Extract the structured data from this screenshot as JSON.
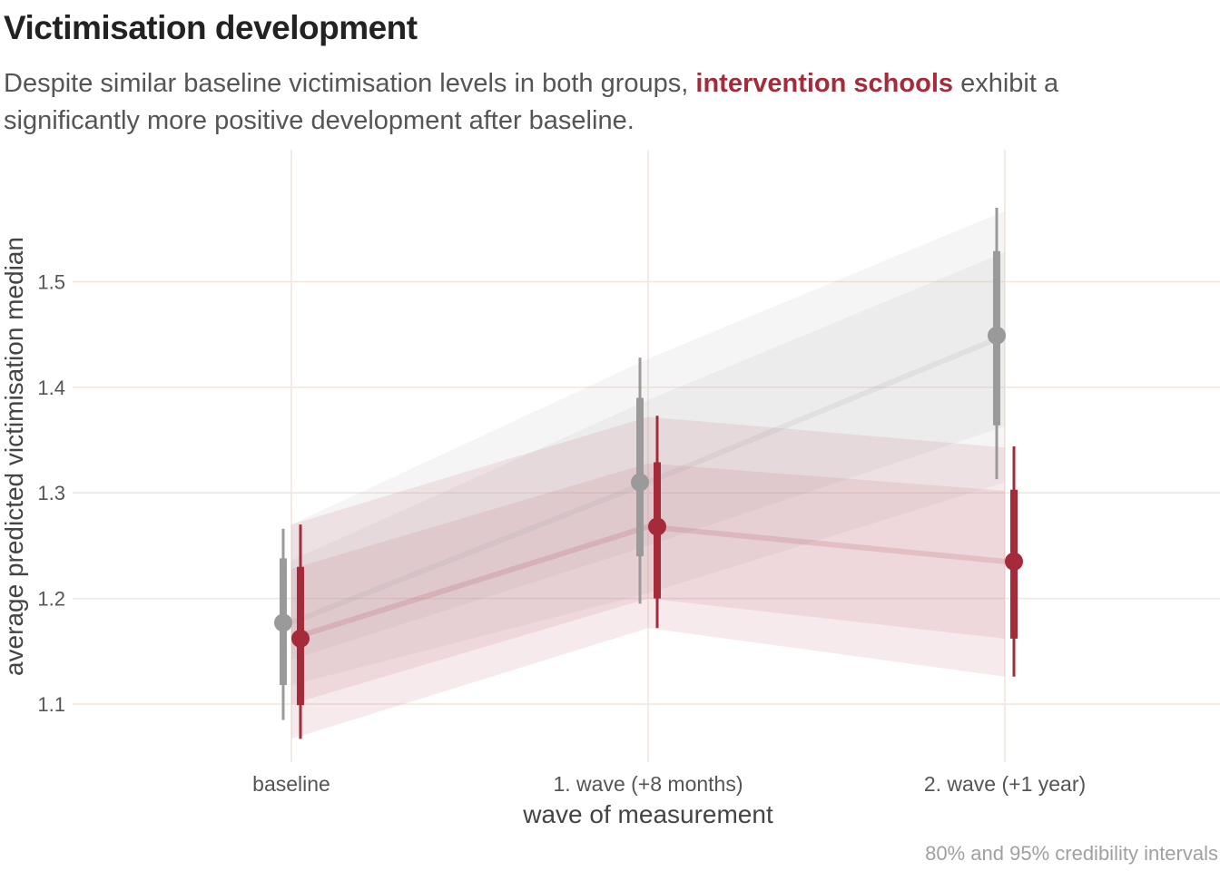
{
  "title": "Victimisation development",
  "subtitle": {
    "before": "Despite similar baseline victimisation levels in both groups, ",
    "highlight": "intervention schools",
    "after": " exhibit a significantly more positive development after baseline."
  },
  "caption": "80% and 95% credibility intervals",
  "colors": {
    "control": "#9a9a9a",
    "intervention": "#a52a3a",
    "grid": "#f1e6dc",
    "text": "#555555"
  },
  "chart_data": {
    "type": "line",
    "title": "Victimisation development",
    "xlabel": "wave of measurement",
    "ylabel": "average predicted victimisation median",
    "categories": [
      "baseline",
      "1. wave (+8 months)",
      "2. wave (+1 year)"
    ],
    "yticks": [
      1.1,
      1.2,
      1.3,
      1.4,
      1.5
    ],
    "ylim": [
      1.045,
      1.625
    ],
    "grid": true,
    "series": [
      {
        "group": "control",
        "values": [
          1.177,
          1.31,
          1.449
        ],
        "ci80": [
          [
            1.118,
            1.238
          ],
          [
            1.24,
            1.39
          ],
          [
            1.364,
            1.529
          ]
        ],
        "ci95": [
          [
            1.085,
            1.266
          ],
          [
            1.195,
            1.428
          ],
          [
            1.313,
            1.57
          ]
        ],
        "band80": [
          [
            1.142,
            1.236
          ],
          [
            1.25,
            1.388
          ],
          [
            1.363,
            1.528
          ]
        ],
        "band95": [
          [
            1.118,
            1.27
          ],
          [
            1.205,
            1.427
          ],
          [
            1.31,
            1.567
          ]
        ]
      },
      {
        "group": "intervention",
        "values": [
          1.162,
          1.268,
          1.235
        ],
        "ci80": [
          [
            1.099,
            1.23
          ],
          [
            1.2,
            1.329
          ],
          [
            1.162,
            1.303
          ]
        ],
        "ci95": [
          [
            1.067,
            1.27
          ],
          [
            1.172,
            1.373
          ],
          [
            1.126,
            1.344
          ]
        ],
        "band80": [
          [
            1.1,
            1.228
          ],
          [
            1.2,
            1.328
          ],
          [
            1.162,
            1.302
          ]
        ],
        "band95": [
          [
            1.067,
            1.27
          ],
          [
            1.172,
            1.372
          ],
          [
            1.126,
            1.343
          ]
        ]
      }
    ]
  }
}
